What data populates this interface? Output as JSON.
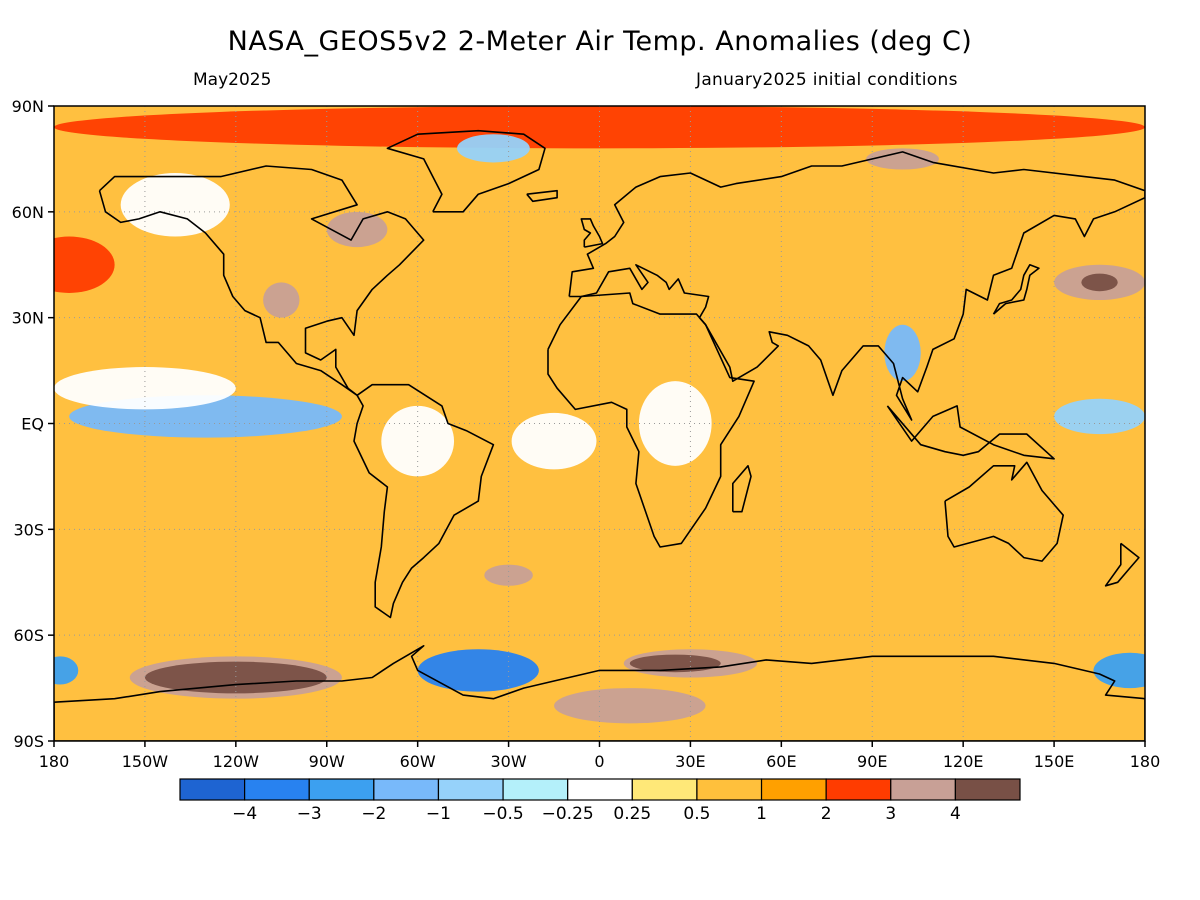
{
  "title": "NASA_GEOS5v2 2-Meter Air Temp. Anomalies (deg C)",
  "subtitle_left": "May2025",
  "subtitle_right": "January2025 initial conditions",
  "map": {
    "projection": "equirectangular",
    "lon_range": [
      -180,
      180
    ],
    "lat_range": [
      -90,
      90
    ],
    "grid": "dotted",
    "lat_labels": [
      {
        "lat": 90,
        "text": "90N"
      },
      {
        "lat": 60,
        "text": "60N"
      },
      {
        "lat": 30,
        "text": "30N"
      },
      {
        "lat": 0,
        "text": "EQ"
      },
      {
        "lat": -30,
        "text": "30S"
      },
      {
        "lat": -60,
        "text": "60S"
      },
      {
        "lat": -90,
        "text": "90S"
      }
    ],
    "lon_labels": [
      {
        "lon": -180,
        "text": "180"
      },
      {
        "lon": -150,
        "text": "150W"
      },
      {
        "lon": -120,
        "text": "120W"
      },
      {
        "lon": -90,
        "text": "90W"
      },
      {
        "lon": -60,
        "text": "60W"
      },
      {
        "lon": -30,
        "text": "30W"
      },
      {
        "lon": 0,
        "text": "0"
      },
      {
        "lon": 30,
        "text": "30E"
      },
      {
        "lon": 60,
        "text": "60E"
      },
      {
        "lon": 90,
        "text": "90E"
      },
      {
        "lon": 120,
        "text": "120E"
      },
      {
        "lon": 150,
        "text": "150E"
      },
      {
        "lon": 180,
        "text": "180"
      }
    ],
    "background_color": "#ffc040",
    "anomaly_regions": [
      {
        "name": "arctic-warm",
        "lon": 0,
        "lat": 84,
        "rlon": 180,
        "rlat": 6,
        "level": 2
      },
      {
        "name": "siberia-hot",
        "lon": 100,
        "lat": 75,
        "rlon": 12,
        "rlat": 3,
        "level": 3
      },
      {
        "name": "greenland-cold",
        "lon": -35,
        "lat": 78,
        "rlon": 12,
        "rlat": 4,
        "level": -0.5
      },
      {
        "name": "north-pacific-warm",
        "lon": -175,
        "lat": 45,
        "rlon": 15,
        "rlat": 8,
        "level": 2
      },
      {
        "name": "north-pacific-hot",
        "lon": 165,
        "lat": 40,
        "rlon": 15,
        "rlat": 5,
        "level": 3
      },
      {
        "name": "north-pacific-max",
        "lon": 165,
        "lat": 40,
        "rlon": 6,
        "rlat": 2.5,
        "level": 4
      },
      {
        "name": "canada-hot",
        "lon": -80,
        "lat": 55,
        "rlon": 10,
        "rlat": 5,
        "level": 3
      },
      {
        "name": "us-hot",
        "lon": -105,
        "lat": 35,
        "rlon": 6,
        "rlat": 5,
        "level": 3
      },
      {
        "name": "alaska-neutral",
        "lon": -140,
        "lat": 62,
        "rlon": 18,
        "rlat": 9,
        "level": 0
      },
      {
        "name": "east-pacific-cold",
        "lon": -130,
        "lat": 2,
        "rlon": 45,
        "rlat": 6,
        "level": -1
      },
      {
        "name": "east-pacific-neutral",
        "lon": -150,
        "lat": 10,
        "rlon": 30,
        "rlat": 6,
        "level": 0
      },
      {
        "name": "amazon-neutral",
        "lon": -60,
        "lat": -5,
        "rlon": 12,
        "rlat": 10,
        "level": 0
      },
      {
        "name": "atlantic-eq-neutral",
        "lon": -15,
        "lat": -5,
        "rlon": 14,
        "rlat": 8,
        "level": 0
      },
      {
        "name": "central-africa-neutral",
        "lon": 25,
        "lat": 0,
        "rlon": 12,
        "rlat": 12,
        "level": 0
      },
      {
        "name": "south-atlantic-hot",
        "lon": -30,
        "lat": -43,
        "rlon": 8,
        "rlat": 3,
        "level": 3
      },
      {
        "name": "se-asia-cold",
        "lon": 100,
        "lat": 20,
        "rlon": 6,
        "rlat": 8,
        "level": -1
      },
      {
        "name": "west-pacific-cold",
        "lon": 165,
        "lat": 2,
        "rlon": 15,
        "rlat": 5,
        "level": -0.5
      },
      {
        "name": "amundsen-hot",
        "lon": -120,
        "lat": -72,
        "rlon": 35,
        "rlat": 6,
        "level": 3
      },
      {
        "name": "amundsen-warm",
        "lon": -120,
        "lat": -72,
        "rlon": 30,
        "rlat": 4.5,
        "level": 4
      },
      {
        "name": "weddell-cold",
        "lon": -40,
        "lat": -70,
        "rlon": 20,
        "rlat": 6,
        "level": -3
      },
      {
        "name": "east-antarctic-hot",
        "lon": 30,
        "lat": -68,
        "rlon": 22,
        "rlat": 4,
        "level": 3
      },
      {
        "name": "east-antarctic-warm",
        "lon": 25,
        "lat": -68,
        "rlon": 15,
        "rlat": 2.5,
        "level": 4
      },
      {
        "name": "antarctic-interior-hot",
        "lon": 10,
        "lat": -80,
        "rlon": 25,
        "rlat": 5,
        "level": 3
      },
      {
        "name": "dateline-south-cold",
        "lon": 175,
        "lat": -70,
        "rlon": 12,
        "rlat": 5,
        "level": -2
      },
      {
        "name": "ross-cold",
        "lon": -178,
        "lat": -70,
        "rlon": 6,
        "rlat": 4,
        "level": -2
      }
    ]
  },
  "colorbar": {
    "colors": [
      "#1e64d2",
      "#2882f0",
      "#3ca0f0",
      "#78b9fa",
      "#96d2fa",
      "#b4f0fa",
      "#ffffff",
      "#ffe878",
      "#ffc03c",
      "#ffa000",
      "#ff3c00",
      "#c8a096",
      "#785046"
    ],
    "labels": [
      "-4",
      "-3",
      "-2",
      "-1",
      "-0.5",
      "-0.25",
      "0.25",
      "0.5",
      "1",
      "2",
      "3",
      "4"
    ]
  }
}
